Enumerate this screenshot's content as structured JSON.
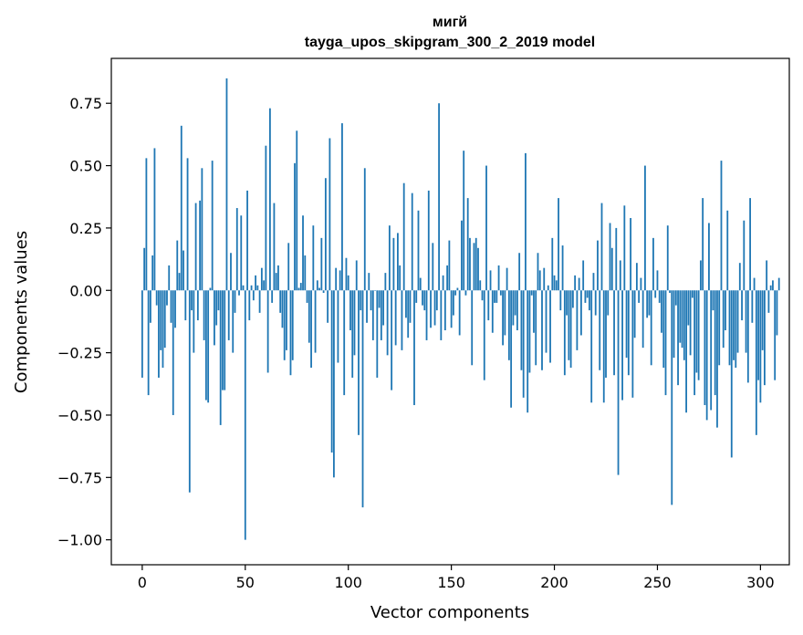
{
  "chart_data": {
    "type": "bar",
    "title": [
      "мигй",
      "tayga_upos_skipgram_300_2_2019 model"
    ],
    "xlabel": "Vector components",
    "ylabel": "Components values",
    "xlim": [
      -15,
      314
    ],
    "ylim": [
      -1.1,
      0.93
    ],
    "xticks": [
      0,
      50,
      100,
      150,
      200,
      250,
      300
    ],
    "xtick_labels": [
      "0",
      "50",
      "100",
      "150",
      "200",
      "250",
      "300"
    ],
    "yticks": [
      0.75,
      0.5,
      0.25,
      0.0,
      -0.25,
      -0.5,
      -0.75,
      -1.0
    ],
    "ytick_labels": [
      "0.75",
      "0.50",
      "0.25",
      "0.00",
      "−0.25",
      "−0.50",
      "−0.75",
      "−1.00"
    ],
    "grid": false,
    "bar_color": "#1f77b4",
    "series": [
      {
        "x_start": 0,
        "values": [
          -0.35,
          0.17,
          0.53,
          -0.42,
          -0.13,
          0.14,
          0.57,
          -0.06,
          -0.35,
          -0.24,
          -0.31,
          -0.23,
          -0.06,
          0.1,
          -0.13,
          -0.5,
          -0.15,
          0.2,
          0.07,
          0.66,
          0.16,
          -0.12,
          0.53,
          -0.81,
          -0.08,
          -0.25,
          0.35,
          -0.12,
          0.36,
          0.49,
          -0.2,
          -0.44,
          -0.45,
          0.01,
          0.52,
          -0.22,
          -0.14,
          -0.08,
          -0.54,
          -0.4,
          -0.4,
          0.85,
          -0.2,
          0.15,
          -0.25,
          -0.09,
          0.33,
          -0.02,
          0.3,
          0.02,
          -1.0,
          0.4,
          -0.12,
          0.02,
          -0.04,
          0.06,
          0.02,
          -0.09,
          0.09,
          0.04,
          0.58,
          -0.33,
          0.73,
          -0.05,
          0.35,
          0.07,
          0.1,
          -0.09,
          -0.15,
          -0.28,
          -0.24,
          0.19,
          -0.34,
          -0.28,
          0.51,
          0.64,
          0.01,
          0.03,
          0.3,
          0.14,
          -0.05,
          -0.21,
          -0.31,
          0.26,
          -0.25,
          0.04,
          0.01,
          0.21,
          -0.01,
          0.45,
          -0.13,
          0.61,
          -0.65,
          -0.75,
          0.09,
          -0.29,
          0.08,
          0.67,
          -0.42,
          0.13,
          0.06,
          -0.16,
          -0.35,
          -0.26,
          0.12,
          -0.58,
          -0.08,
          -0.87,
          0.49,
          -0.13,
          0.07,
          -0.08,
          -0.2,
          0.0,
          -0.35,
          -0.07,
          -0.2,
          -0.14,
          0.07,
          -0.26,
          0.26,
          -0.4,
          0.21,
          -0.22,
          0.23,
          0.1,
          -0.24,
          0.43,
          -0.11,
          -0.19,
          -0.13,
          0.39,
          -0.46,
          -0.05,
          0.32,
          0.05,
          -0.06,
          -0.08,
          -0.2,
          0.4,
          -0.15,
          0.19,
          -0.14,
          -0.08,
          0.75,
          -0.2,
          0.06,
          -0.16,
          0.1,
          0.2,
          -0.15,
          -0.1,
          -0.02,
          0.01,
          -0.18,
          0.28,
          0.56,
          -0.02,
          0.37,
          0.21,
          -0.3,
          0.19,
          0.21,
          0.17,
          0.04,
          -0.04,
          -0.36,
          0.5,
          -0.12,
          0.08,
          -0.17,
          -0.05,
          -0.05,
          0.1,
          -0.02,
          -0.22,
          -0.18,
          0.09,
          -0.28,
          -0.47,
          -0.14,
          -0.1,
          -0.16,
          0.15,
          -0.32,
          -0.43,
          0.55,
          -0.49,
          -0.33,
          -0.02,
          -0.17,
          -0.3,
          0.15,
          0.08,
          -0.32,
          0.09,
          -0.25,
          0.02,
          -0.29,
          0.21,
          0.06,
          0.04,
          0.37,
          -0.08,
          0.18,
          -0.34,
          -0.1,
          -0.28,
          -0.31,
          -0.07,
          0.06,
          -0.24,
          0.05,
          -0.18,
          0.12,
          -0.05,
          -0.03,
          -0.08,
          -0.45,
          0.07,
          -0.1,
          0.2,
          -0.32,
          0.35,
          -0.45,
          -0.35,
          -0.1,
          0.27,
          0.17,
          -0.34,
          0.25,
          -0.74,
          0.12,
          -0.44,
          0.34,
          -0.27,
          -0.34,
          0.29,
          -0.43,
          -0.19,
          0.11,
          -0.05,
          0.05,
          -0.23,
          0.5,
          -0.11,
          -0.1,
          -0.3,
          0.21,
          -0.03,
          0.08,
          -0.05,
          -0.17,
          -0.31,
          -0.42,
          0.26,
          -0.01,
          -0.86,
          -0.27,
          -0.06,
          -0.38,
          -0.21,
          -0.23,
          -0.28,
          -0.49,
          -0.14,
          -0.26,
          -0.03,
          -0.42,
          -0.33,
          -0.36,
          0.12,
          0.37,
          -0.46,
          -0.52,
          0.27,
          -0.48,
          -0.08,
          -0.42,
          -0.55,
          -0.3,
          0.52,
          -0.23,
          -0.16,
          0.32,
          -0.3,
          -0.67,
          -0.28,
          -0.31,
          -0.25,
          0.11,
          -0.12,
          0.28,
          -0.25,
          -0.37,
          0.37,
          -0.13,
          0.05,
          -0.58,
          -0.36,
          -0.45,
          -0.24,
          -0.38,
          0.12,
          -0.09,
          0.02,
          0.04,
          -0.36,
          -0.18,
          0.05
        ]
      }
    ]
  }
}
